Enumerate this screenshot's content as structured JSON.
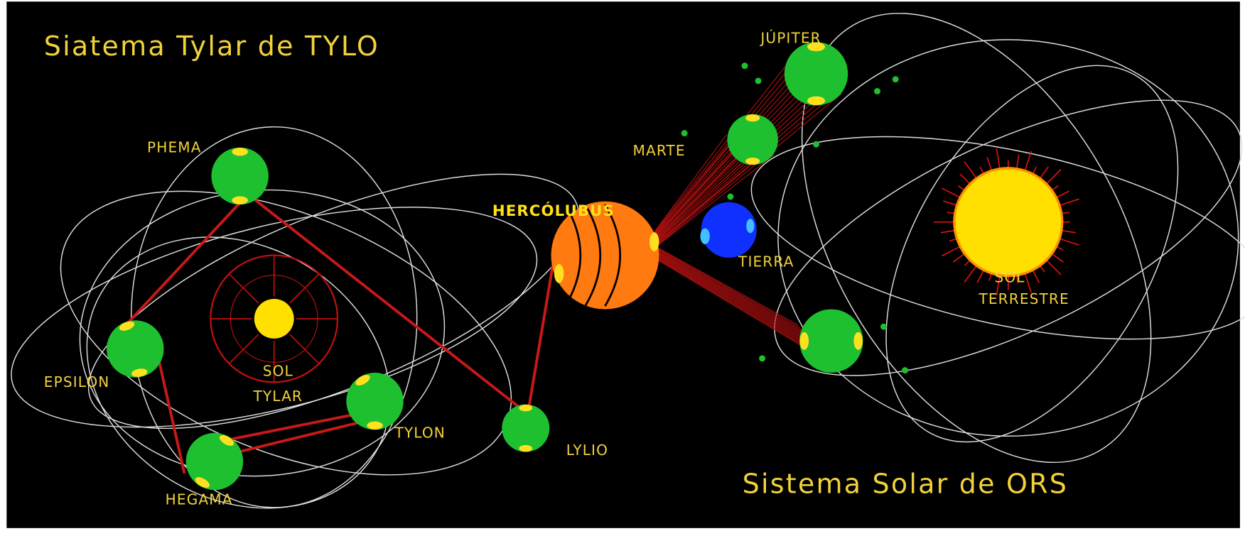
{
  "titles": {
    "tylo": "Siatema Tylar de TYLO",
    "ors": "Sistema Solar de ORS"
  },
  "labels": {
    "phema": "PHEMA",
    "epsilon": "EPSILON",
    "sol_tylar": [
      "SOL",
      "TYLAR"
    ],
    "hegama": "HEGAMA",
    "tylon": "TYLON",
    "lylio": "LYLIO",
    "hercolubus": "HERCÓLUBUS",
    "jupiter": "JÚPITER",
    "marte": "MARTE",
    "tierra": "TIERRA",
    "sol_terrestre": [
      "SOL",
      "TERRESTRE"
    ]
  }
}
